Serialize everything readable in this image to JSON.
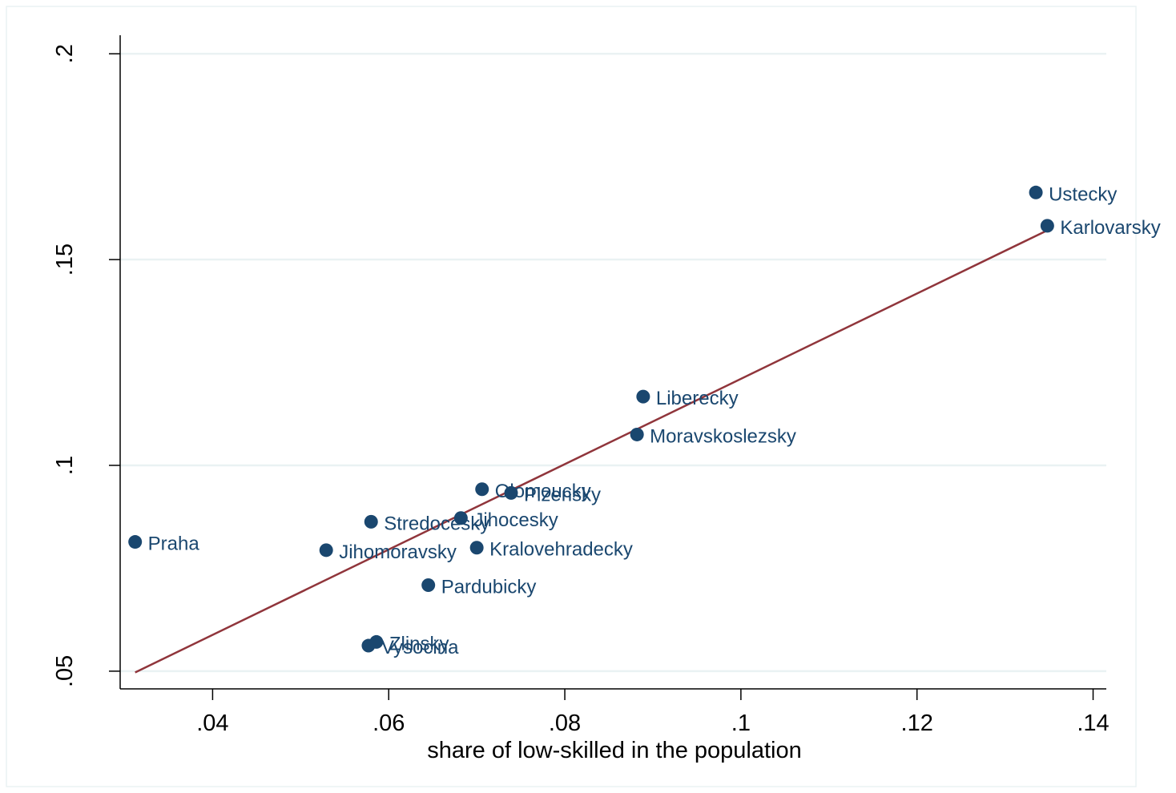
{
  "chart_data": {
    "type": "scatter",
    "title": "",
    "xlabel": "share of low-skilled in the population",
    "ylabel": "",
    "xlim": [
      0.0295,
      0.1415
    ],
    "ylim": [
      0.0457,
      0.2045
    ],
    "x_ticks": [
      {
        "value": 0.04,
        "label": ".04"
      },
      {
        "value": 0.06,
        "label": ".06"
      },
      {
        "value": 0.08,
        "label": ".08"
      },
      {
        "value": 0.1,
        "label": ".1"
      },
      {
        "value": 0.12,
        "label": ".12"
      },
      {
        "value": 0.14,
        "label": ".14"
      }
    ],
    "y_ticks": [
      {
        "value": 0.05,
        "label": ".05"
      },
      {
        "value": 0.1,
        "label": ".1"
      },
      {
        "value": 0.15,
        "label": ".15"
      },
      {
        "value": 0.2,
        "label": ".2"
      }
    ],
    "grid": "horizontal",
    "legend": "none",
    "colors": {
      "points": "#1a476f",
      "labels": "#1a476f",
      "fit_line": "#90353b",
      "grid": "#eaf2f3",
      "frame": "#eaf2f3",
      "axis": "#000000"
    },
    "points": [
      {
        "label": "Praha",
        "x": 0.0312,
        "y": 0.0814
      },
      {
        "label": "Jihomoravsky",
        "x": 0.0529,
        "y": 0.0794
      },
      {
        "label": "Stredocesky",
        "x": 0.058,
        "y": 0.0863
      },
      {
        "label": "Jihocesky",
        "x": 0.0682,
        "y": 0.0872
      },
      {
        "label": "Olomoucky",
        "x": 0.0706,
        "y": 0.0942
      },
      {
        "label": "Plzensky",
        "x": 0.0739,
        "y": 0.0933
      },
      {
        "label": "Kralovehradecky",
        "x": 0.07,
        "y": 0.08
      },
      {
        "label": "Pardubicky",
        "x": 0.0645,
        "y": 0.0709
      },
      {
        "label": "Zlinsky",
        "x": 0.0586,
        "y": 0.0571
      },
      {
        "label": "Vysocina",
        "x": 0.0577,
        "y": 0.0562
      },
      {
        "label": "Moravskoslezsky",
        "x": 0.0882,
        "y": 0.1075
      },
      {
        "label": "Liberecky",
        "x": 0.0889,
        "y": 0.1167
      },
      {
        "label": "Ustecky",
        "x": 0.1335,
        "y": 0.1663
      },
      {
        "label": "Karlovarsky",
        "x": 0.1348,
        "y": 0.1582
      }
    ],
    "fit_line": {
      "x": [
        0.0312,
        0.1348
      ],
      "y": [
        0.0497,
        0.1571
      ]
    }
  }
}
